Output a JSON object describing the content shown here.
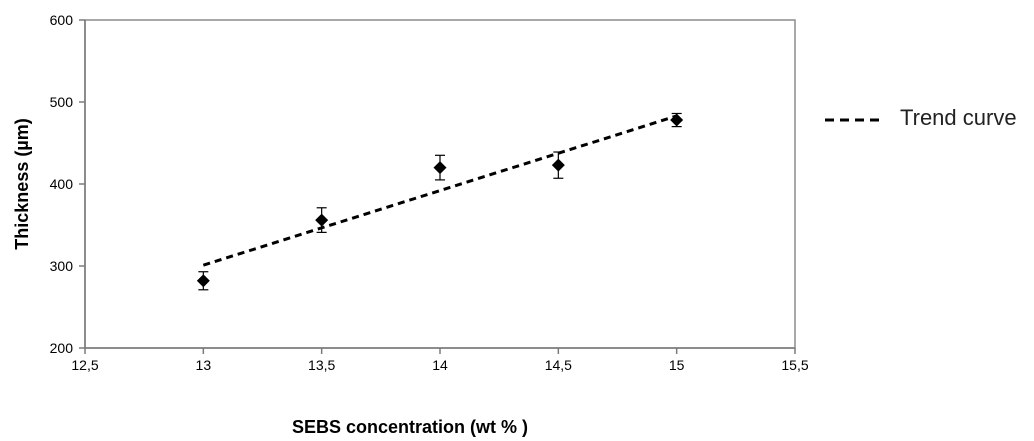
{
  "chart_data": {
    "type": "scatter",
    "xlabel": "SEBS concentration (wt % )",
    "ylabel": "Thickness (µm)",
    "xlim": [
      12.5,
      15.5
    ],
    "ylim": [
      200,
      600
    ],
    "xticks": [
      12.5,
      13,
      13.5,
      14,
      14.5,
      15,
      15.5
    ],
    "yticks": [
      200,
      300,
      400,
      500,
      600
    ],
    "xtick_labels": [
      "12,5",
      "13",
      "13,5",
      "14",
      "14,5",
      "15",
      "15,5"
    ],
    "ytick_labels": [
      "200",
      "300",
      "400",
      "500",
      "600"
    ],
    "grid": false,
    "legend_position": "right",
    "series": [
      {
        "marker": "diamond",
        "color": "#000000",
        "x": [
          13,
          13.5,
          14,
          14.5,
          15
        ],
        "y": [
          282,
          356,
          420,
          423,
          478
        ],
        "error": [
          11,
          15,
          15,
          16,
          8
        ]
      }
    ],
    "trend": {
      "name": "Trend curve",
      "style": "dashed",
      "color": "#000000",
      "x": [
        13,
        15
      ],
      "y": [
        301,
        483
      ]
    }
  }
}
